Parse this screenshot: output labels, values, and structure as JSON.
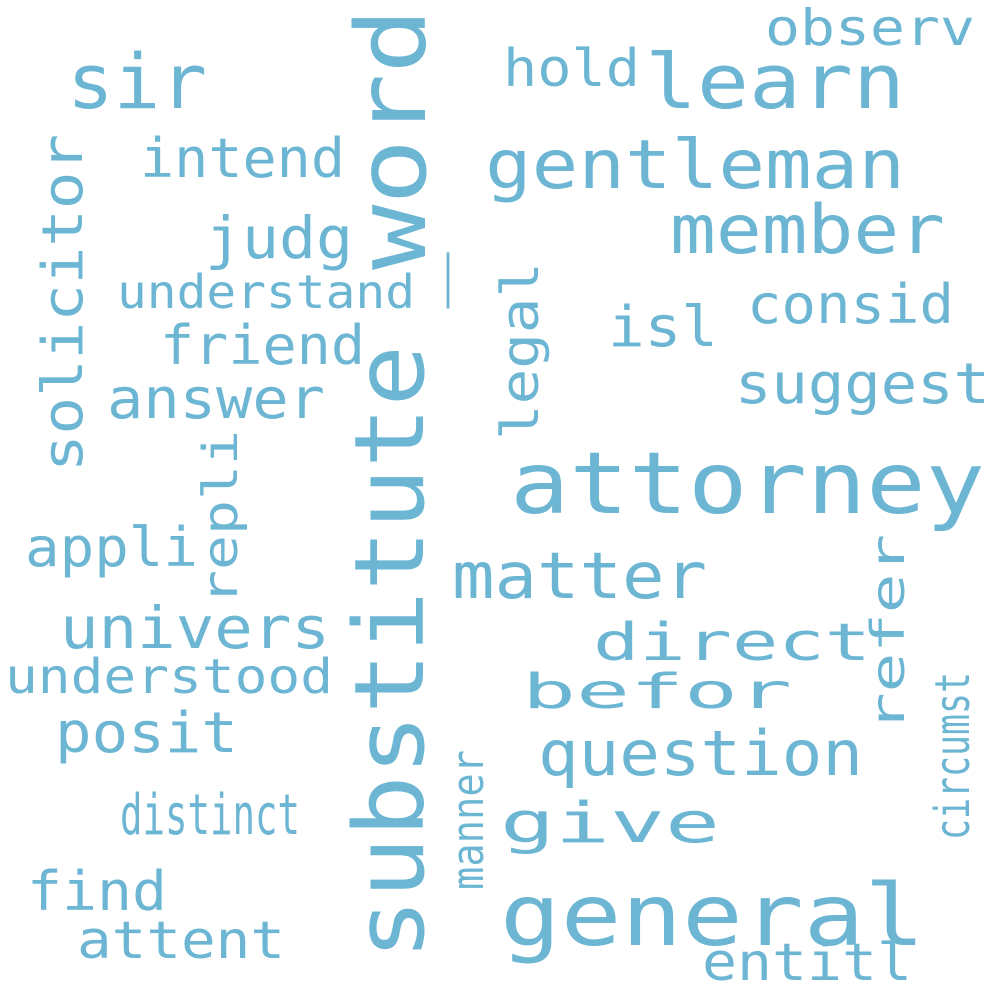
{
  "word_color": "#6cb6d4",
  "background": "#ffffff",
  "words": [
    {
      "id": "substitute",
      "text": "substitute"
    },
    {
      "id": "word",
      "text": "word"
    },
    {
      "id": "attorney",
      "text": "attorney"
    },
    {
      "id": "general",
      "text": "general"
    },
    {
      "id": "learn",
      "text": "learn"
    },
    {
      "id": "gentleman",
      "text": "gentleman"
    },
    {
      "id": "sir",
      "text": "sir"
    },
    {
      "id": "member",
      "text": "member"
    },
    {
      "id": "question",
      "text": "question"
    },
    {
      "id": "matter",
      "text": "matter"
    },
    {
      "id": "solicitor",
      "text": "solicitor"
    },
    {
      "id": "univers",
      "text": "univers"
    },
    {
      "id": "suggest",
      "text": "suggest"
    },
    {
      "id": "answer",
      "text": "answer"
    },
    {
      "id": "friend",
      "text": "friend"
    },
    {
      "id": "judg",
      "text": "judg"
    },
    {
      "id": "consid",
      "text": "consid"
    },
    {
      "id": "intend",
      "text": "intend"
    },
    {
      "id": "understand",
      "text": "understand"
    },
    {
      "id": "observ",
      "text": "observ"
    },
    {
      "id": "hold",
      "text": "hold"
    },
    {
      "id": "isl",
      "text": "isl"
    },
    {
      "id": "legal",
      "text": "legal"
    },
    {
      "id": "repli",
      "text": "repli"
    },
    {
      "id": "appli",
      "text": "appli"
    },
    {
      "id": "understood",
      "text": "understood"
    },
    {
      "id": "posit",
      "text": "posit"
    },
    {
      "id": "refer",
      "text": "refer"
    },
    {
      "id": "distinct",
      "text": "distinct"
    },
    {
      "id": "circumst",
      "text": "circumst"
    },
    {
      "id": "manner",
      "text": "manner"
    },
    {
      "id": "direct",
      "text": "direct"
    },
    {
      "id": "befor",
      "text": "befor"
    },
    {
      "id": "give",
      "text": "give"
    },
    {
      "id": "find",
      "text": "find"
    },
    {
      "id": "attent",
      "text": "attent"
    },
    {
      "id": "entitl",
      "text": "entitl"
    },
    {
      "id": "pipe",
      "text": "|"
    }
  ]
}
